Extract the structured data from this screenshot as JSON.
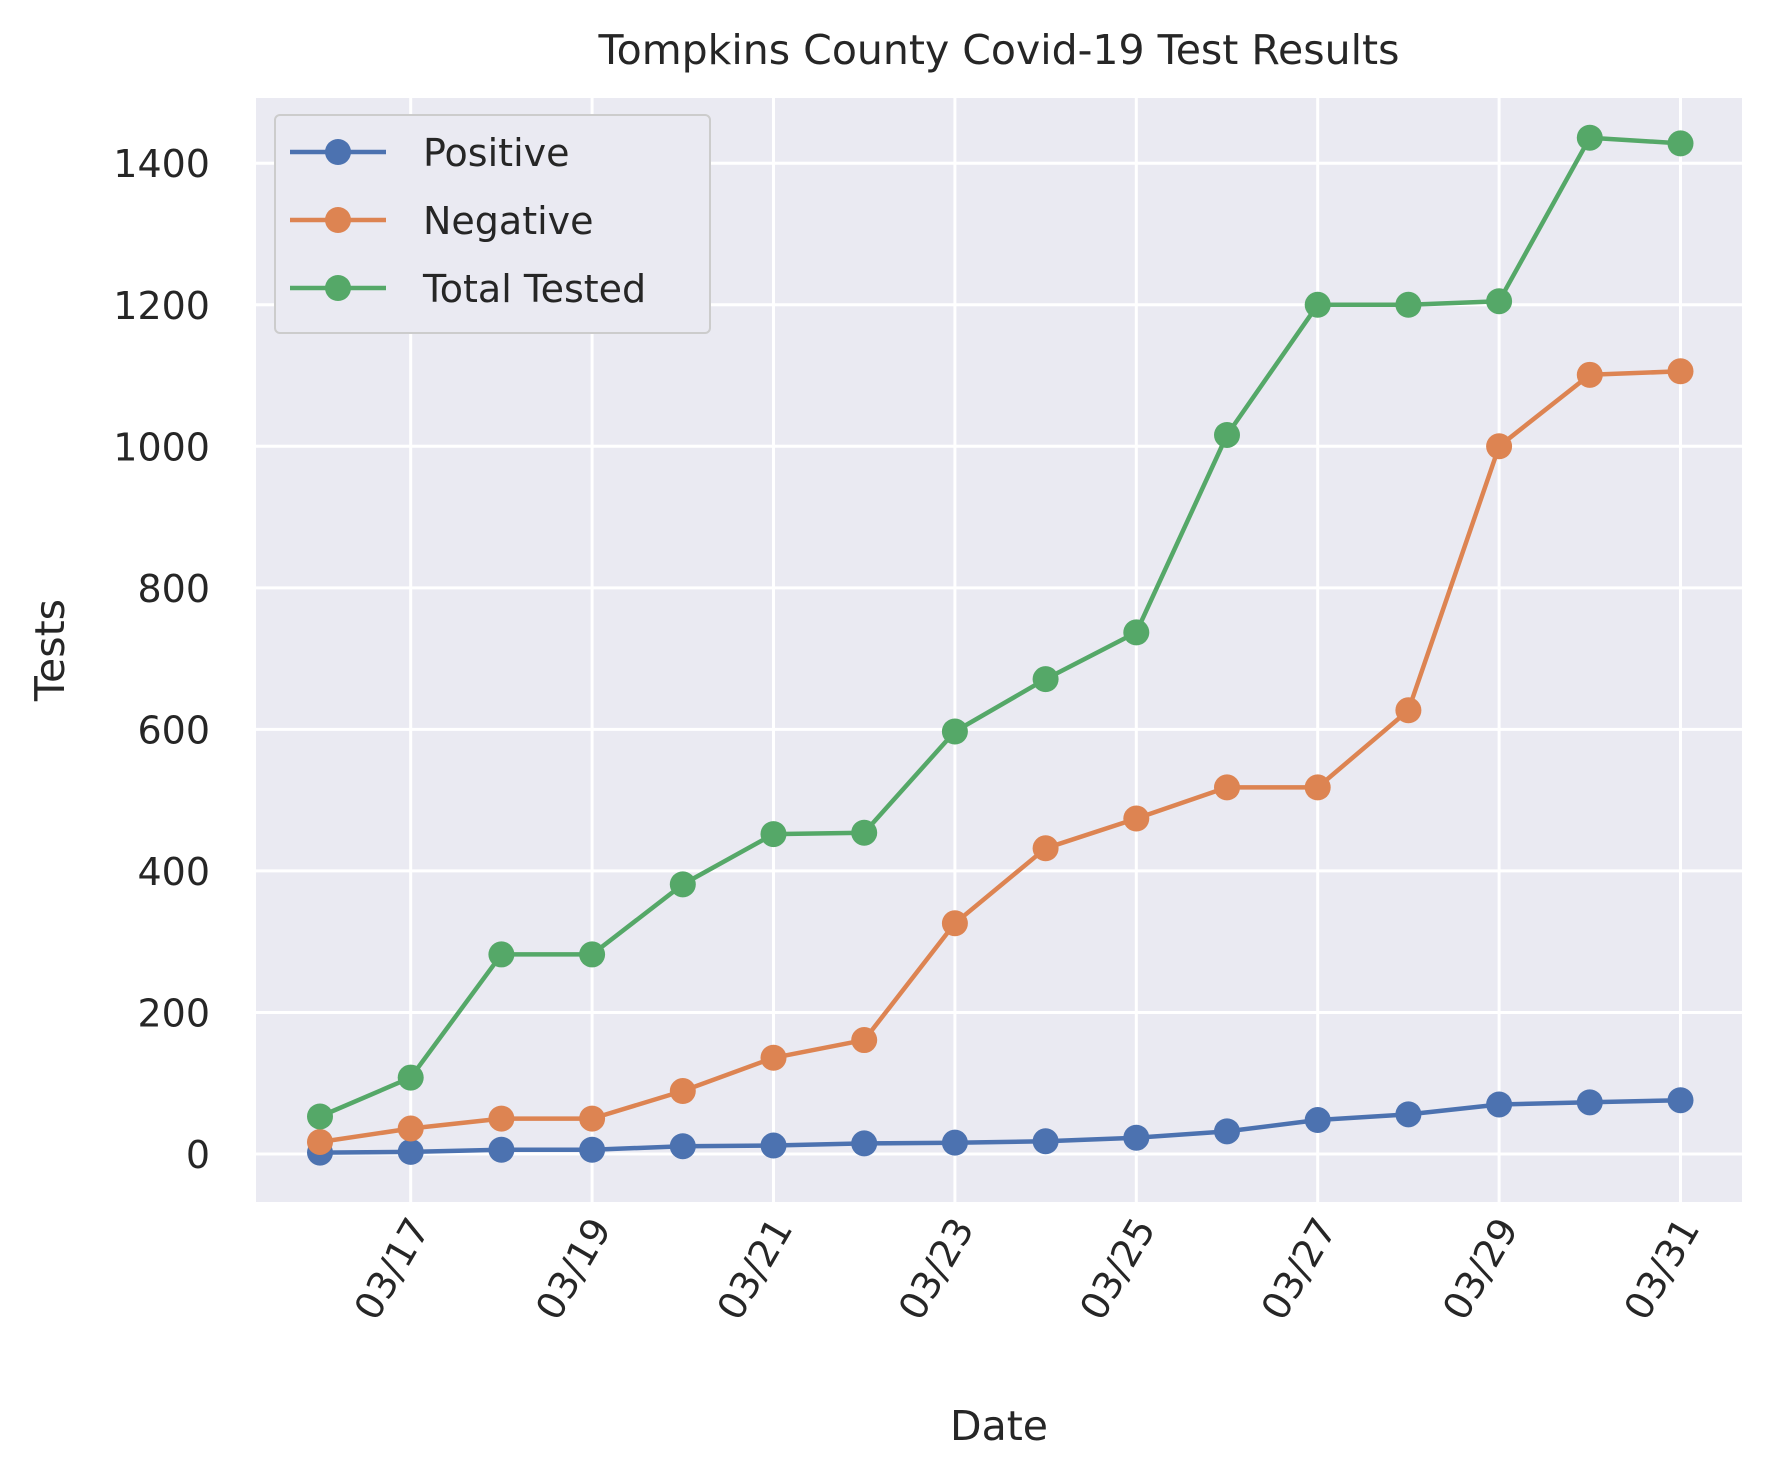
{
  "chart_data": {
    "type": "line",
    "title": "Tompkins County Covid-19 Test Results",
    "xlabel": "Date",
    "ylabel": "Tests",
    "x": [
      "03/16",
      "03/17",
      "03/18",
      "03/19",
      "03/20",
      "03/21",
      "03/22",
      "03/23",
      "03/24",
      "03/25",
      "03/26",
      "03/27",
      "03/28",
      "03/29",
      "03/30",
      "03/31"
    ],
    "xticks": [
      "03/17",
      "03/19",
      "03/21",
      "03/23",
      "03/25",
      "03/27",
      "03/29",
      "03/31"
    ],
    "yticks": [
      0,
      200,
      400,
      600,
      800,
      1000,
      1200,
      1400
    ],
    "ylim": [
      -68,
      1495
    ],
    "grid": true,
    "legend_position": "top-left",
    "marker": "circle",
    "series": [
      {
        "name": "Positive",
        "color": "#4c72b0",
        "values": [
          2,
          3,
          6,
          6,
          11,
          12,
          15,
          16,
          18,
          23,
          32,
          48,
          56,
          70,
          73,
          76
        ]
      },
      {
        "name": "Negative",
        "color": "#dd8452",
        "values": [
          17,
          36,
          50,
          50,
          89,
          136,
          161,
          326,
          432,
          474,
          518,
          518,
          627,
          1000,
          1101,
          1106
        ]
      },
      {
        "name": "Total Tested",
        "color": "#55a868",
        "values": [
          53,
          108,
          282,
          282,
          381,
          452,
          454,
          597,
          671,
          737,
          1016,
          1200,
          1200,
          1205,
          1436,
          1428
        ]
      }
    ]
  }
}
